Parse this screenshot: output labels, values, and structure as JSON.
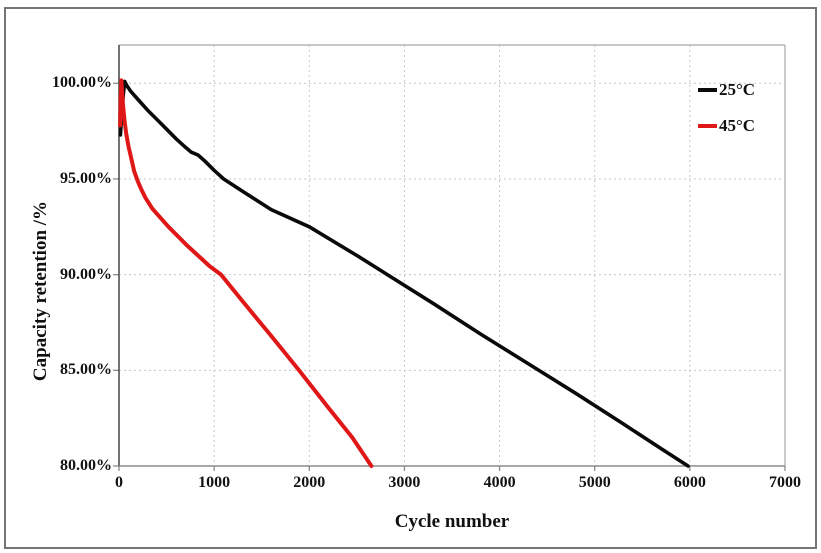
{
  "figure": {
    "border_color": "#757575",
    "background": "#ffffff"
  },
  "chart_data": {
    "type": "line",
    "title": "",
    "xlabel": "Cycle number",
    "ylabel": "Capacity retention /%",
    "xlim": [
      0,
      7000
    ],
    "ylim": [
      80,
      102
    ],
    "x_ticks": [
      0,
      1000,
      2000,
      3000,
      4000,
      5000,
      6000,
      7000
    ],
    "x_tick_labels": [
      "0",
      "1000",
      "2000",
      "3000",
      "4000",
      "5000",
      "6000",
      "7000"
    ],
    "y_ticks": [
      80,
      85,
      90,
      95,
      100
    ],
    "y_tick_labels": [
      "80.00%",
      "85.00%",
      "90.00%",
      "95.00%",
      "100.00%"
    ],
    "grid": true,
    "grid_color": "#c6c6c6",
    "axis_color": "#8c8c8c",
    "left_axis_color": "#4f4f4f",
    "plot_border_color": "#b5b5b5",
    "legend_position": "top-right-inside",
    "series": [
      {
        "name": "25°C",
        "color": "#0a0a0a",
        "width": 3.6,
        "points": [
          [
            15,
            97.3
          ],
          [
            30,
            98.5
          ],
          [
            45,
            99.4
          ],
          [
            60,
            100.1
          ],
          [
            80,
            99.9
          ],
          [
            120,
            99.6
          ],
          [
            200,
            99.15
          ],
          [
            300,
            98.6
          ],
          [
            400,
            98.1
          ],
          [
            500,
            97.6
          ],
          [
            600,
            97.1
          ],
          [
            700,
            96.65
          ],
          [
            760,
            96.4
          ],
          [
            830,
            96.25
          ],
          [
            900,
            95.95
          ],
          [
            1000,
            95.45
          ],
          [
            1100,
            95.0
          ],
          [
            1300,
            94.35
          ],
          [
            1600,
            93.4
          ],
          [
            2000,
            92.5
          ],
          [
            2500,
            91.0
          ],
          [
            2820,
            90.0
          ],
          [
            3300,
            88.5
          ],
          [
            3800,
            86.9
          ],
          [
            4300,
            85.35
          ],
          [
            4800,
            83.8
          ],
          [
            5300,
            82.2
          ],
          [
            5700,
            80.9
          ],
          [
            5980,
            80.0
          ]
        ]
      },
      {
        "name": "45°C",
        "color": "#e01717",
        "width": 4.0,
        "points": [
          [
            12,
            97.8
          ],
          [
            18,
            99.2
          ],
          [
            25,
            100.15
          ],
          [
            40,
            99.0
          ],
          [
            55,
            98.2
          ],
          [
            75,
            97.4
          ],
          [
            100,
            96.7
          ],
          [
            130,
            96.05
          ],
          [
            160,
            95.4
          ],
          [
            200,
            94.85
          ],
          [
            240,
            94.4
          ],
          [
            280,
            94.0
          ],
          [
            350,
            93.45
          ],
          [
            430,
            93.0
          ],
          [
            520,
            92.5
          ],
          [
            620,
            92.0
          ],
          [
            720,
            91.5
          ],
          [
            830,
            91.0
          ],
          [
            950,
            90.45
          ],
          [
            1072,
            90.0
          ],
          [
            1300,
            88.6
          ],
          [
            1600,
            86.8
          ],
          [
            1900,
            84.95
          ],
          [
            2200,
            83.05
          ],
          [
            2450,
            81.5
          ],
          [
            2653,
            80.0
          ]
        ]
      }
    ]
  }
}
